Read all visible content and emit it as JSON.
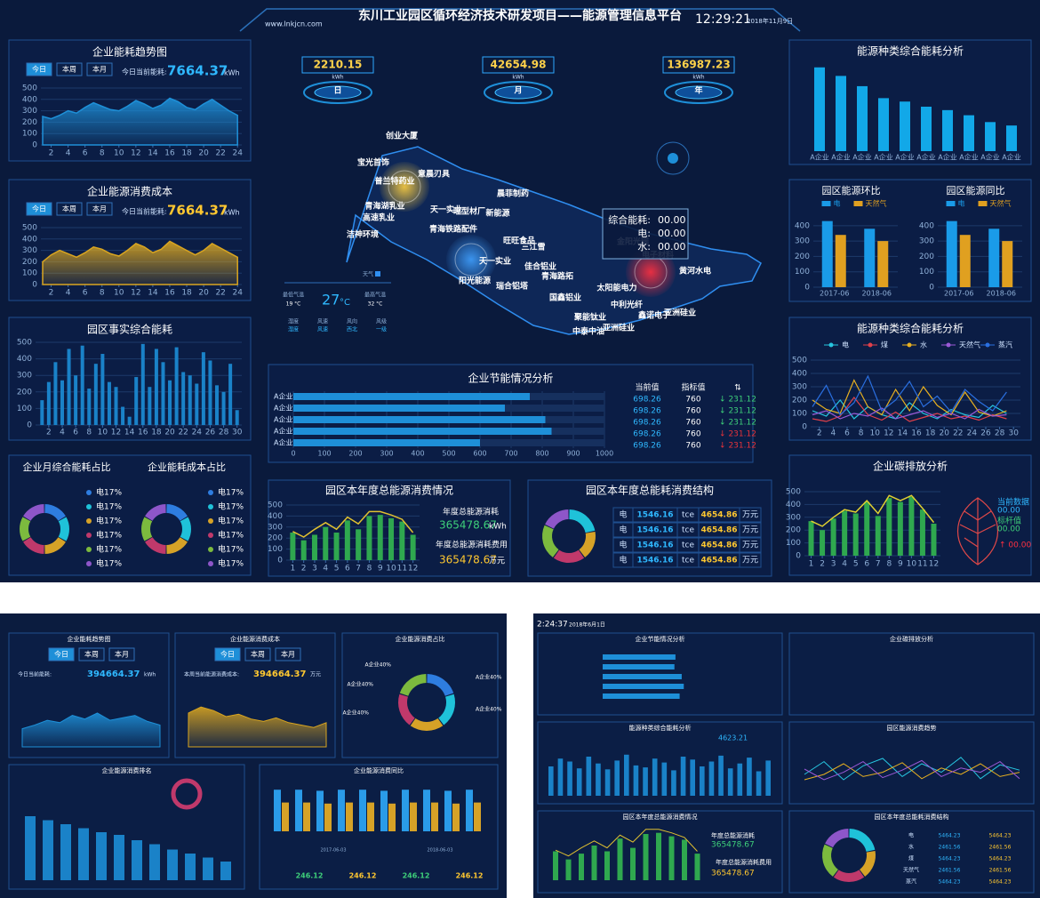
{
  "header": {
    "site": "www.lnkjcn.com",
    "title": "东川工业园区循环经济技术研发项目——能源管理信息平台",
    "time": "12:29:21",
    "date": "2018年11月9日"
  },
  "kpis": [
    {
      "value": 2210.15,
      "unit": "kWh",
      "label": "日"
    },
    {
      "value": 42654.98,
      "unit": "kWh",
      "label": "月"
    },
    {
      "value": 136987.23,
      "unit": "kWh",
      "label": "年"
    }
  ],
  "trend": {
    "title": "企业能耗趋势图",
    "tabs": [
      "今日",
      "本周",
      "本月"
    ],
    "current_label": "今日当前能耗:",
    "current": 7664.37,
    "unit": "kWh",
    "color": "#1e90d8",
    "x": [
      1,
      2,
      3,
      4,
      5,
      6,
      7,
      8,
      9,
      10,
      11,
      12,
      13,
      14,
      15,
      16,
      17,
      18,
      19,
      20,
      21,
      22,
      23,
      24
    ],
    "values": [
      250,
      230,
      260,
      300,
      280,
      330,
      370,
      340,
      310,
      300,
      340,
      390,
      360,
      320,
      350,
      410,
      380,
      330,
      310,
      360,
      400,
      350,
      300,
      260
    ],
    "xlim": [
      1,
      24.5
    ],
    "xticks": [
      2,
      4,
      6,
      8,
      10,
      12,
      14,
      16,
      18,
      20,
      22,
      24
    ],
    "ylim": [
      0,
      500
    ],
    "yticks": [
      0,
      100,
      200,
      300,
      400,
      500
    ]
  },
  "cost": {
    "title": "企业能源消费成本",
    "tabs": [
      "今日",
      "本周",
      "本月"
    ],
    "current_label": "今日当前能耗:",
    "current": 7664.37,
    "unit": "kWh",
    "color": "#d9a520",
    "x": [
      1,
      2,
      3,
      4,
      5,
      6,
      7,
      8,
      9,
      10,
      11,
      12,
      13,
      14,
      15,
      16,
      17,
      18,
      19,
      20,
      21,
      22,
      23,
      24
    ],
    "values": [
      200,
      260,
      300,
      270,
      240,
      280,
      330,
      310,
      270,
      250,
      300,
      360,
      330,
      280,
      310,
      380,
      340,
      300,
      260,
      300,
      360,
      320,
      280,
      240
    ],
    "xlim": [
      1,
      24.5
    ],
    "xticks": [
      2,
      4,
      6,
      8,
      10,
      12,
      14,
      16,
      18,
      20,
      22,
      24
    ],
    "ylim": [
      0,
      500
    ],
    "yticks": [
      0,
      100,
      200,
      300,
      400,
      500
    ]
  },
  "realtime": {
    "title": "园区事实综合能耗",
    "color": "#1a82c8",
    "x": [
      1,
      2,
      3,
      4,
      5,
      6,
      7,
      8,
      9,
      10,
      11,
      12,
      13,
      14,
      15,
      16,
      17,
      18,
      19,
      20,
      21,
      22,
      23,
      24,
      25,
      26,
      27,
      28,
      29,
      30
    ],
    "values": [
      150,
      260,
      380,
      270,
      460,
      300,
      480,
      220,
      370,
      430,
      260,
      230,
      110,
      50,
      290,
      490,
      230,
      460,
      380,
      270,
      470,
      320,
      300,
      250,
      440,
      390,
      240,
      200,
      370,
      90
    ],
    "xlim": [
      0.3,
      30.7
    ],
    "xticks": [
      2,
      4,
      6,
      8,
      10,
      12,
      14,
      16,
      18,
      20,
      22,
      24,
      26,
      28,
      30
    ],
    "ylim": [
      0,
      500
    ],
    "yticks": [
      0,
      100,
      200,
      300,
      400,
      500
    ]
  },
  "share": [
    {
      "title": "企业月综合能耗占比",
      "values": [
        17,
        17,
        17,
        17,
        17,
        17
      ],
      "labels": [
        "电17%",
        "电17%",
        "电17%",
        "电17%",
        "电17%",
        "电17%"
      ],
      "colors": [
        "#2e7de0",
        "#1fc2d9",
        "#d6a227",
        "#c0396b",
        "#7cba3e",
        "#8e56c9"
      ]
    },
    {
      "title": "企业能耗成本占比",
      "values": [
        17,
        17,
        17,
        17,
        17,
        17
      ],
      "labels": [
        "电17%",
        "电17%",
        "电17%",
        "电17%",
        "电17%",
        "电17%"
      ],
      "colors": [
        "#2e7de0",
        "#1fc2d9",
        "#d6a227",
        "#c0396b",
        "#7cba3e",
        "#8e56c9"
      ]
    }
  ],
  "map": {
    "places": [
      "创业大厦",
      "宝光首饰",
      "普兰特药业",
      "意晨刃具",
      "晨菲制药",
      "青海湖乳业",
      "天一实业",
      "旺型材厂",
      "新能源",
      "高速乳业",
      "青海铁路配件",
      "洁神环境",
      "旺旺食品",
      "三江雪",
      "金阳光瑞",
      "电子材料",
      "黄河水电",
      "天一实业",
      "佳合铝业",
      "青海路拓",
      "阳光能源",
      "瑞合铝塔",
      "国鑫铝业",
      "太阳能电力",
      "中利光纤",
      "鑫诺电子",
      "亚洲硅业",
      "聚能钛业",
      "中泰中油",
      "亚洲硅业"
    ],
    "popup": [
      {
        "label": "综合能耗:",
        "value": "00.00"
      },
      {
        "label": "电:",
        "value": "00.00"
      },
      {
        "label": "水:",
        "value": "00.00"
      }
    ]
  },
  "weather": {
    "label": "天气",
    "temp": 27,
    "unit": "°C",
    "low_label": "最低气温",
    "low": "19 °C",
    "high_label": "最高气温",
    "high": "32 °C",
    "items": [
      {
        "label": "湿度",
        "value": "湿度"
      },
      {
        "label": "风速",
        "value": "风速"
      },
      {
        "label": "风向",
        "value": "西北"
      },
      {
        "label": "风级",
        "value": "一级"
      }
    ]
  },
  "saving": {
    "title": "企业节能情况分析",
    "categories": [
      "A企业",
      "A企业",
      "A企业",
      "A企业",
      "A企业"
    ],
    "values": [
      760,
      680,
      810,
      830,
      600
    ],
    "color": "#1e8fd8",
    "xlim": [
      0,
      1000
    ],
    "xticks": [
      0,
      100,
      200,
      300,
      400,
      500,
      600,
      700,
      800,
      900,
      1000
    ],
    "columns": [
      "当前值",
      "指标值",
      "⇅"
    ],
    "rows": [
      [
        "698.26",
        "760",
        "↓ 231.12"
      ],
      [
        "698.26",
        "760",
        "↓ 231.12"
      ],
      [
        "698.26",
        "760",
        "↓ 231.12"
      ],
      [
        "698.26",
        "760",
        "↓ 231.12"
      ],
      [
        "698.26",
        "760",
        "↓ 231.12"
      ]
    ],
    "row_colors": [
      "#3ed07a",
      "#3ed07a",
      "#3ed07a",
      "#e8333a",
      "#e8333a"
    ]
  },
  "annual": {
    "title": "园区本年度总能源消费情况",
    "x": [
      1,
      2,
      3,
      4,
      5,
      6,
      7,
      8,
      9,
      10,
      11,
      12
    ],
    "bars": [
      250,
      180,
      230,
      300,
      250,
      360,
      280,
      400,
      410,
      380,
      350,
      230
    ],
    "line": [
      260,
      210,
      280,
      340,
      280,
      390,
      330,
      440,
      440,
      410,
      370,
      250
    ],
    "bar_color": "#2fa84f",
    "line_color": "#e0c030",
    "xlim": [
      0.4,
      12.6
    ],
    "xticks": [
      1,
      2,
      3,
      4,
      5,
      6,
      7,
      8,
      9,
      10,
      11,
      12
    ],
    "ylim": [
      0,
      500
    ],
    "yticks": [
      0,
      100,
      200,
      300,
      400,
      500
    ],
    "total_label": "年度总能源消耗",
    "total": 365478.67,
    "total_unit": "kWh",
    "fee_label": "年度总能源消耗费用",
    "fee": 365478.67,
    "fee_unit": "万元"
  },
  "structure": {
    "title": "园区本年度总能耗消费结构",
    "values": [
      22,
      18,
      20,
      22,
      18
    ],
    "colors": [
      "#1fc2d9",
      "#d6a227",
      "#c0396b",
      "#7cba3e",
      "#8e56c9"
    ],
    "rows": [
      [
        "电",
        "1546.16",
        "tce",
        "4654.86",
        "万元"
      ],
      [
        "电",
        "1546.16",
        "tce",
        "4654.86",
        "万元"
      ],
      [
        "电",
        "1546.16",
        "tce",
        "4654.86",
        "万元"
      ],
      [
        "电",
        "1546.16",
        "tce",
        "4654.86",
        "万元"
      ]
    ]
  },
  "types": {
    "title": "能源种类综合能耗分析",
    "categories": [
      "A企业",
      "A企业",
      "A企业",
      "A企业",
      "A企业",
      "A企业",
      "A企业",
      "A企业",
      "A企业",
      "A企业"
    ],
    "values": [
      490,
      440,
      380,
      310,
      290,
      260,
      240,
      210,
      170,
      150
    ],
    "color": "#12a8e8",
    "ylim": [
      0,
      520
    ]
  },
  "mom": {
    "title": "园区能源环比",
    "categories": [
      "2017-06",
      "2018-06"
    ],
    "series": [
      {
        "name": "电",
        "color": "#1a9be8",
        "values": [
          430,
          380
        ]
      },
      {
        "name": "天然气",
        "color": "#e0a020",
        "values": [
          340,
          300
        ]
      }
    ],
    "ylim": [
      0,
      480
    ],
    "yticks": [
      0,
      100,
      200,
      300,
      400
    ]
  },
  "yoy": {
    "title": "园区能源同比",
    "categories": [
      "2017-06",
      "2018-06"
    ],
    "series": [
      {
        "name": "电",
        "color": "#1a9be8",
        "values": [
          430,
          380
        ]
      },
      {
        "name": "天然气",
        "color": "#e0a020",
        "values": [
          340,
          300
        ]
      }
    ],
    "ylim": [
      0,
      480
    ],
    "yticks": [
      0,
      100,
      200,
      300,
      400
    ]
  },
  "lines": {
    "title": "能源种类综合能耗分析",
    "x": [
      1,
      3,
      5,
      7,
      9,
      11,
      13,
      15,
      17,
      19,
      21,
      23,
      25,
      27,
      29
    ],
    "xlim": [
      1,
      31
    ],
    "xticks": [
      2,
      4,
      6,
      8,
      10,
      12,
      14,
      16,
      18,
      20,
      22,
      24,
      26,
      28,
      30
    ],
    "ylim": [
      0,
      500
    ],
    "yticks": [
      0,
      100,
      200,
      300,
      400,
      500
    ],
    "series": [
      {
        "name": "电",
        "color": "#27c6e0",
        "values": [
          120,
          80,
          200,
          60,
          150,
          90,
          60,
          180,
          100,
          60,
          130,
          90,
          70,
          160,
          100
        ]
      },
      {
        "name": "煤",
        "color": "#e0404a",
        "values": [
          60,
          40,
          80,
          220,
          90,
          50,
          110,
          40,
          70,
          100,
          60,
          80,
          50,
          90,
          60
        ]
      },
      {
        "name": "水",
        "color": "#e8b020",
        "values": [
          200,
          130,
          100,
          350,
          150,
          90,
          280,
          120,
          300,
          160,
          90,
          260,
          110,
          80,
          120
        ]
      },
      {
        "name": "天然气",
        "color": "#9b59d6",
        "values": [
          90,
          120,
          60,
          100,
          80,
          140,
          60,
          90,
          120,
          70,
          100,
          60,
          130,
          80,
          90
        ]
      },
      {
        "name": "蒸汽",
        "color": "#2a6fe0",
        "values": [
          150,
          310,
          90,
          180,
          380,
          120,
          200,
          340,
          150,
          230,
          110,
          280,
          190,
          120,
          260
        ]
      }
    ]
  },
  "carbon": {
    "title": "企业碳排放分析",
    "x": [
      1,
      2,
      3,
      4,
      5,
      6,
      7,
      8,
      9,
      10,
      11,
      12
    ],
    "bars": [
      270,
      200,
      290,
      350,
      330,
      420,
      310,
      450,
      420,
      460,
      360,
      250
    ],
    "line": [
      270,
      230,
      300,
      360,
      340,
      430,
      330,
      470,
      430,
      470,
      370,
      260
    ],
    "bar_color": "#2fa84f",
    "line_color": "#e0d030",
    "xlim": [
      0.4,
      12.6
    ],
    "xticks": [
      1,
      2,
      3,
      4,
      5,
      6,
      7,
      8,
      9,
      10,
      11,
      12
    ],
    "ylim": [
      0,
      500
    ],
    "yticks": [
      0,
      100,
      200,
      300,
      400,
      500
    ],
    "current_label": "当前数据",
    "current": "00.00",
    "bench_label": "标杆值",
    "bench": "00.00",
    "change": "↑ 00.00"
  },
  "screen2": {
    "trend": {
      "title": "企业能耗趋势图",
      "tabs": [
        "今日",
        "本周",
        "本月"
      ],
      "current_label": "今日当前能耗:",
      "current": 394664.37,
      "unit": "kWh",
      "color": "#1e90d8",
      "values": [
        150,
        180,
        220,
        200,
        260,
        230,
        280,
        220,
        240,
        260,
        210,
        180
      ],
      "ylim": [
        0,
        500
      ]
    },
    "cost": {
      "title": "企业能源消费成本",
      "tabs": [
        "今日",
        "本周",
        "本月"
      ],
      "current_label": "本周当前能源消费成本:",
      "current": 394664.37,
      "unit": "万元",
      "color": "#d9a520",
      "values": [
        280,
        330,
        300,
        250,
        270,
        230,
        210,
        240,
        200,
        180,
        160,
        200
      ],
      "ylim": [
        0,
        500
      ]
    },
    "share": {
      "title": "企业能源消费占比",
      "values": [
        40,
        40,
        40,
        40,
        40
      ],
      "labels": [
        "A企业40%",
        "A企业40%",
        "A企业40%",
        "A企业40%",
        "A企业40%"
      ],
      "colors": [
        "#2e7de0",
        "#1fc2d9",
        "#d6a227",
        "#c0396b",
        "#7cba3e"
      ]
    },
    "ranking": {
      "title": "企业能源消费排名",
      "values": [
        480,
        450,
        420,
        390,
        360,
        340,
        300,
        270,
        230,
        200,
        170,
        140
      ],
      "color": "#1a82c8",
      "ylim": [
        0,
        500
      ]
    },
    "compare": {
      "title": "企业能源消费同比",
      "series": [
        {
          "color": "#2a9be8",
          "values": [
            390,
            390,
            380,
            390,
            390,
            380,
            390,
            390,
            380,
            390
          ]
        },
        {
          "color": "#d6a227",
          "values": [
            270,
            270,
            260,
            270,
            270,
            260,
            270,
            270,
            260,
            270
          ]
        }
      ],
      "ylim": [
        0,
        500
      ],
      "dates": [
        "2017-06-03",
        "2018-06-03"
      ],
      "totals": [
        246.12,
        246.12,
        246.12,
        246.12
      ]
    }
  },
  "screen3": {
    "time": "2:24:37",
    "date": "2018年6月1日",
    "saving": {
      "title": "企业节能情况分析",
      "values": [
        700,
        690,
        760,
        780,
        740
      ],
      "color": "#1e8fd8",
      "xlim": [
        0,
        1000
      ]
    },
    "carbon": {
      "title": "企业碳排放分析"
    },
    "types": {
      "title": "能源种类综合能耗分析",
      "current": 4623.21,
      "values": [
        300,
        380,
        350,
        280,
        400,
        330,
        270,
        360,
        420,
        310,
        290,
        380,
        340,
        260,
        400,
        370,
        300,
        350,
        410,
        280,
        330,
        390,
        250,
        360
      ],
      "color": "#1a82c8",
      "ylim": [
        0,
        500
      ]
    },
    "trend": {
      "title": "园区能源消费趋势",
      "series": [
        {
          "color": "#27c6e0",
          "values": [
            200,
            320,
            150,
            280,
            350,
            180,
            300,
            220,
            360,
            160,
            290,
            240
          ]
        },
        {
          "color": "#e8b020",
          "values": [
            150,
            200,
            300,
            180,
            220,
            310,
            160,
            260,
            200,
            300,
            180,
            220
          ]
        },
        {
          "color": "#9b59d6",
          "values": [
            250,
            150,
            220,
            320,
            170,
            240,
            330,
            180,
            260,
            220,
            320,
            160
          ]
        }
      ],
      "ylim": [
        0,
        500
      ]
    },
    "annual": {
      "title": "园区本年度总能源消费情况",
      "bars": [
        250,
        180,
        230,
        300,
        250,
        360,
        280,
        400,
        410,
        380,
        350,
        230
      ],
      "line": [
        260,
        210,
        280,
        340,
        280,
        390,
        330,
        440,
        440,
        410,
        370,
        250
      ],
      "bar_color": "#2fa84f",
      "line_color": "#e0c030",
      "ylim": [
        0,
        500
      ],
      "total_label": "年度总能源消耗",
      "total": 365478.67,
      "fee_label": "年度总能源消耗费用",
      "fee": 365478.67
    },
    "structure": {
      "title": "园区本年度总能耗消费结构",
      "values": [
        22,
        18,
        20,
        22,
        18
      ],
      "colors": [
        "#1fc2d9",
        "#d6a227",
        "#c0396b",
        "#7cba3e",
        "#8e56c9"
      ],
      "rows": [
        [
          "电",
          "5464.23",
          "5464.23"
        ],
        [
          "水",
          "2461.56",
          "2461.56"
        ],
        [
          "煤",
          "5464.23",
          "5464.23"
        ],
        [
          "天然气",
          "2461.56",
          "2461.56"
        ],
        [
          "蒸汽",
          "5464.23",
          "5464.23"
        ]
      ]
    }
  }
}
